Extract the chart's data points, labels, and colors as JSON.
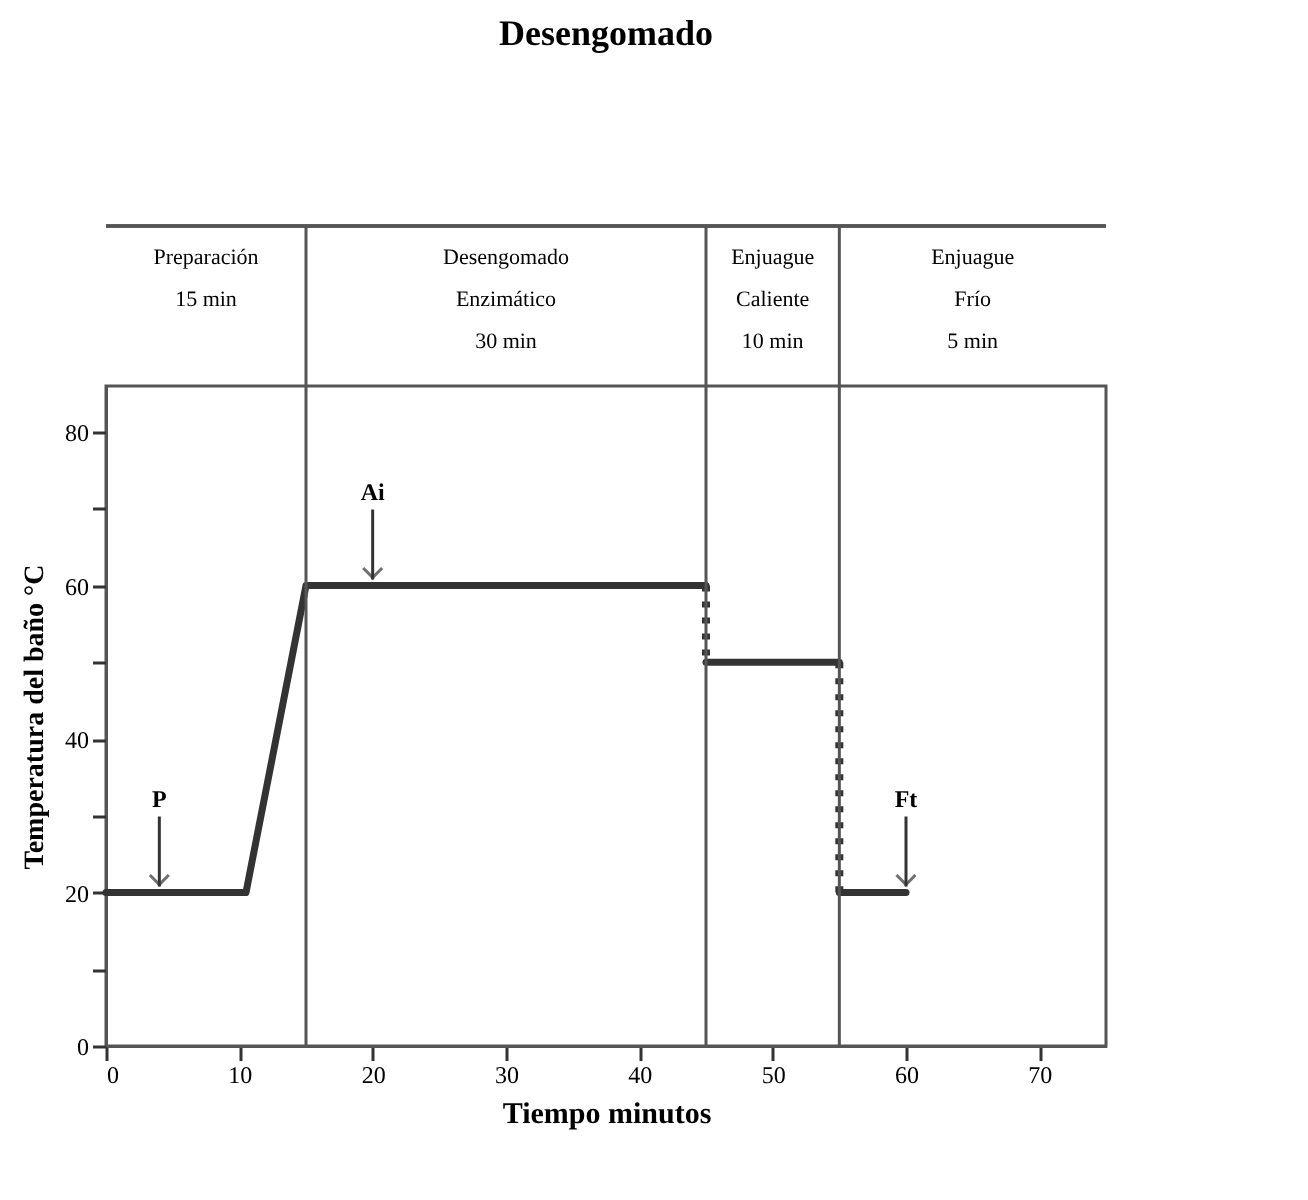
{
  "chart_data": {
    "type": "line",
    "title": "Desengomado",
    "xlabel": "Tiempo minutos",
    "ylabel": "Temperatura del baño °C",
    "xlim": [
      0,
      75
    ],
    "xticks": [
      0,
      10,
      20,
      30,
      40,
      50,
      60,
      70
    ],
    "ylim": [
      0,
      86
    ],
    "yticks": [
      0,
      {
        "value": 10,
        "label": null
      },
      20,
      {
        "value": 30,
        "label": null
      },
      40,
      {
        "value": 50,
        "label": null
      },
      60,
      {
        "value": 70,
        "label": null
      },
      80
    ],
    "grid": false,
    "series": [
      {
        "color": "#333333",
        "line_style": "solid",
        "x": [
          0,
          10.5,
          15,
          45
        ],
        "values": [
          20,
          20,
          60,
          60
        ]
      },
      {
        "color": "#333333",
        "line_style": "dotted",
        "x": [
          45,
          45
        ],
        "values": [
          60,
          50
        ]
      },
      {
        "color": "#333333",
        "line_style": "solid",
        "x": [
          45,
          55
        ],
        "values": [
          50,
          50
        ]
      },
      {
        "color": "#333333",
        "line_style": "dotted",
        "x": [
          55,
          55
        ],
        "values": [
          50,
          20
        ]
      },
      {
        "color": "#333333",
        "line_style": "solid",
        "x": [
          55,
          60
        ],
        "values": [
          20,
          20
        ]
      }
    ],
    "ref_lines": [
      {
        "axis": "x",
        "value": 15,
        "label": null,
        "color": "#555555"
      },
      {
        "axis": "x",
        "value": 45,
        "label": null,
        "color": "#555555"
      },
      {
        "axis": "x",
        "value": 55,
        "label": null,
        "color": "#555555"
      }
    ],
    "annotations": [
      "Preparación\n\n15 min",
      "Desengomado\nEnzimático\n30 min",
      "Enjuague\nCaliente\n10 min",
      "Enjuague\nFrío\n5 min",
      {
        "text": "P",
        "x": 4,
        "y": 20
      },
      {
        "text": "Ai",
        "x": 20,
        "y": 60
      },
      {
        "text": "Ft",
        "x": 60,
        "y": 20
      }
    ]
  }
}
